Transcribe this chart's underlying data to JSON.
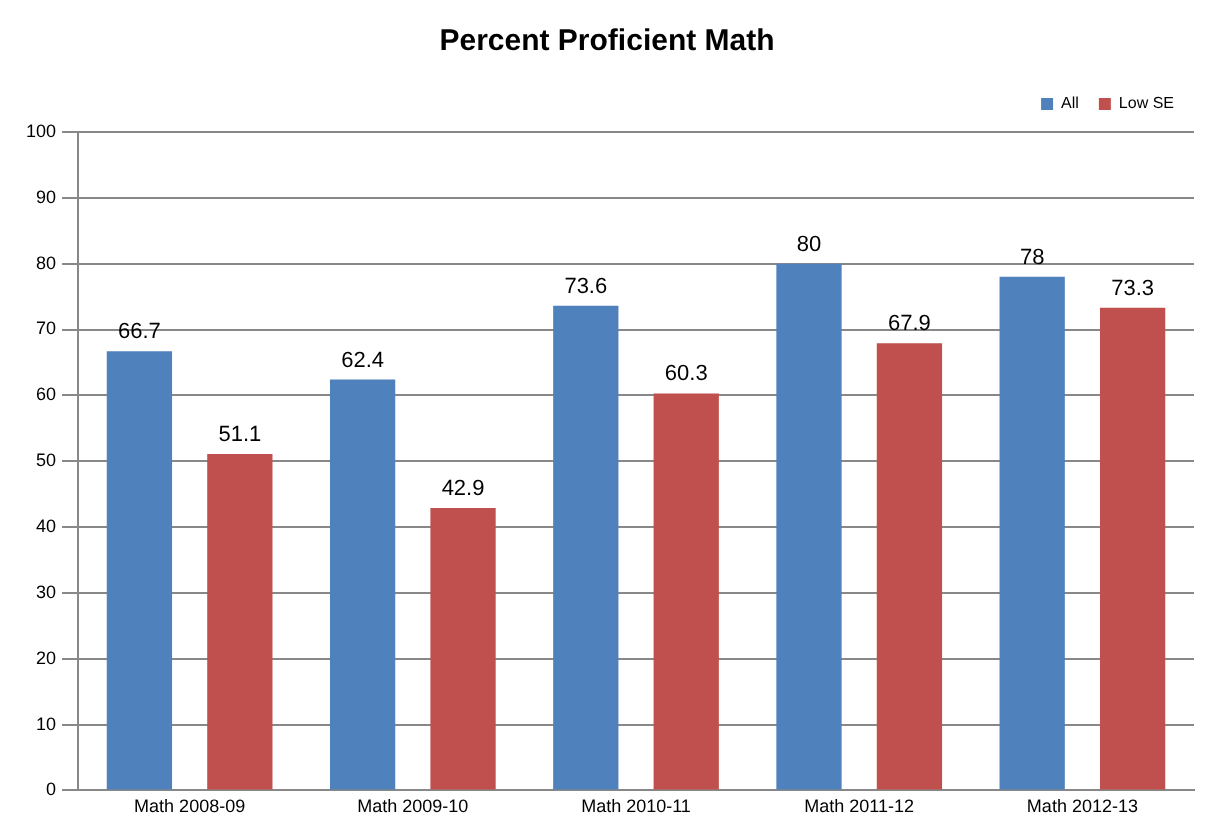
{
  "chart_data": {
    "type": "bar",
    "title": "Percent Proficient Math",
    "categories": [
      "Math 2008-09",
      "Math 2009-10",
      "Math 2010-11",
      "Math 2011-12",
      "Math 2012-13"
    ],
    "series": [
      {
        "name": "All",
        "color": "#4f81bd",
        "values": [
          66.7,
          62.4,
          73.6,
          80,
          78
        ]
      },
      {
        "name": "Low SE",
        "color": "#c0504d",
        "values": [
          51.1,
          42.9,
          60.3,
          67.9,
          73.3
        ]
      }
    ],
    "ylim": [
      0,
      100
    ],
    "yticks": [
      0,
      10,
      20,
      30,
      40,
      50,
      60,
      70,
      80,
      90,
      100
    ],
    "grid": "y",
    "legend": "top right",
    "data_labels": true
  }
}
